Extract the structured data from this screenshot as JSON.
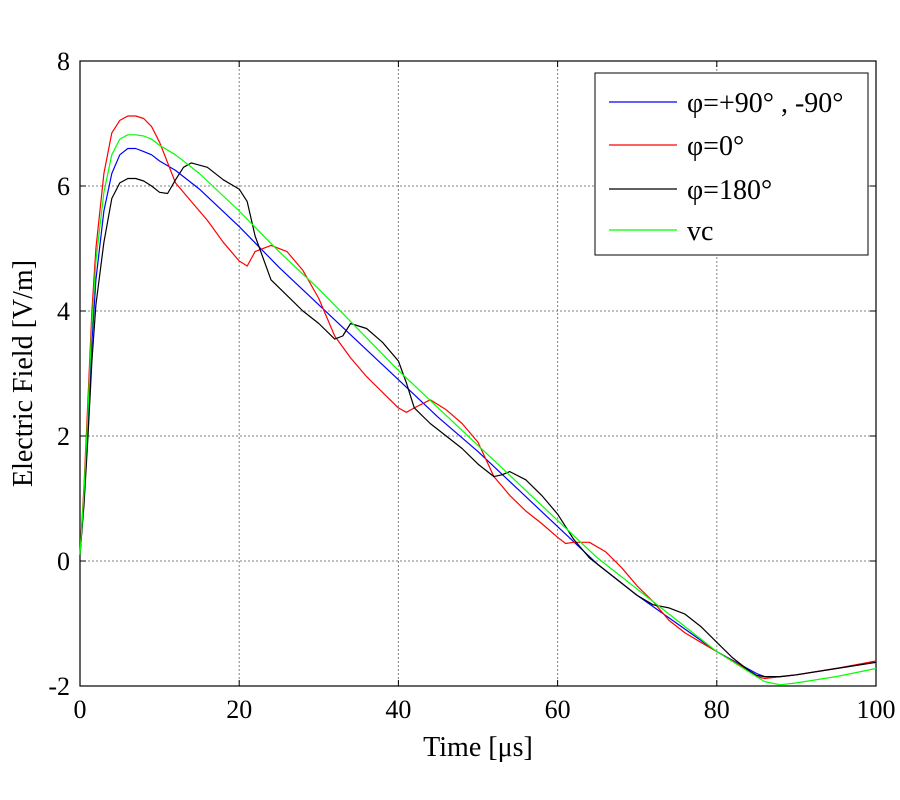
{
  "chart_data": {
    "type": "line",
    "title": "",
    "xlabel": "Time [μs]",
    "ylabel": "Electric Field [V/m]",
    "xlim": [
      0,
      100
    ],
    "ylim": [
      -2,
      8
    ],
    "xticks": [
      0,
      20,
      40,
      60,
      80,
      100
    ],
    "yticks": [
      -2,
      0,
      2,
      4,
      6,
      8
    ],
    "grid": true,
    "legend_position": "top-right",
    "series": [
      {
        "name": "φ=+90° , -90°",
        "color": "#0000ff",
        "x": [
          0,
          0.5,
          1,
          1.5,
          2,
          3,
          4,
          5,
          6,
          7,
          8,
          9,
          10,
          12,
          15,
          20,
          25,
          30,
          35,
          40,
          45,
          50,
          55,
          60,
          65,
          70,
          75,
          80,
          85,
          86,
          88,
          90,
          95,
          100
        ],
        "y": [
          0.1,
          1.0,
          2.2,
          3.5,
          4.5,
          5.6,
          6.2,
          6.5,
          6.6,
          6.6,
          6.55,
          6.5,
          6.4,
          6.25,
          5.95,
          5.35,
          4.7,
          4.1,
          3.5,
          2.9,
          2.3,
          1.75,
          1.15,
          0.55,
          -0.05,
          -0.55,
          -1.0,
          -1.45,
          -1.8,
          -1.85,
          -1.85,
          -1.82,
          -1.72,
          -1.62
        ]
      },
      {
        "name": "φ=0°",
        "color": "#ff0000",
        "x": [
          0,
          0.5,
          1,
          1.5,
          2,
          3,
          4,
          5,
          6,
          7,
          8,
          9,
          10,
          12,
          14,
          16,
          18,
          20,
          21,
          22,
          24,
          26,
          28,
          30,
          32,
          34,
          36,
          38,
          40,
          41,
          42,
          44,
          46,
          48,
          50,
          52,
          54,
          56,
          58,
          60,
          61,
          62,
          64,
          66,
          68,
          70,
          72,
          74,
          76,
          78,
          80,
          82,
          84,
          85,
          86,
          88,
          90,
          95,
          100
        ],
        "y": [
          0.1,
          1.2,
          2.6,
          4.0,
          5.0,
          6.2,
          6.85,
          7.05,
          7.12,
          7.12,
          7.08,
          6.95,
          6.7,
          6.05,
          5.75,
          5.45,
          5.1,
          4.8,
          4.72,
          4.95,
          5.05,
          4.95,
          4.65,
          4.2,
          3.6,
          3.25,
          2.95,
          2.7,
          2.45,
          2.38,
          2.45,
          2.58,
          2.42,
          2.2,
          1.9,
          1.35,
          1.05,
          0.8,
          0.6,
          0.38,
          0.28,
          0.3,
          0.3,
          0.15,
          -0.1,
          -0.4,
          -0.65,
          -0.95,
          -1.15,
          -1.3,
          -1.45,
          -1.6,
          -1.75,
          -1.85,
          -1.88,
          -1.85,
          -1.82,
          -1.72,
          -1.6
        ]
      },
      {
        "name": "φ=180°",
        "color": "#000000",
        "x": [
          0,
          0.5,
          1,
          1.5,
          2,
          3,
          4,
          5,
          6,
          7,
          8,
          9,
          10,
          11,
          12,
          13,
          14,
          16,
          18,
          20,
          21,
          22,
          24,
          26,
          28,
          30,
          32,
          33,
          34,
          36,
          38,
          40,
          41,
          42,
          44,
          46,
          48,
          50,
          52,
          53,
          54,
          56,
          58,
          60,
          62,
          64,
          66,
          68,
          70,
          72,
          74,
          76,
          78,
          80,
          82,
          84,
          85,
          86,
          88,
          90,
          95,
          100
        ],
        "y": [
          0.1,
          0.9,
          2.0,
          3.2,
          4.1,
          5.1,
          5.8,
          6.05,
          6.12,
          6.12,
          6.08,
          6.0,
          5.9,
          5.88,
          6.1,
          6.3,
          6.37,
          6.3,
          6.1,
          5.95,
          5.75,
          5.2,
          4.5,
          4.25,
          4.0,
          3.8,
          3.55,
          3.6,
          3.8,
          3.72,
          3.5,
          3.2,
          2.85,
          2.45,
          2.2,
          2.0,
          1.8,
          1.55,
          1.35,
          1.38,
          1.43,
          1.3,
          1.05,
          0.75,
          0.35,
          0.05,
          -0.15,
          -0.35,
          -0.55,
          -0.7,
          -0.75,
          -0.85,
          -1.05,
          -1.3,
          -1.55,
          -1.75,
          -1.83,
          -1.85,
          -1.85,
          -1.82,
          -1.72,
          -1.62
        ]
      },
      {
        "name": "vc",
        "color": "#00ff00",
        "x": [
          0,
          0.5,
          1,
          1.5,
          2,
          3,
          4,
          5,
          6,
          7,
          8,
          9,
          10,
          12,
          15,
          20,
          25,
          30,
          35,
          40,
          45,
          50,
          55,
          60,
          65,
          70,
          75,
          80,
          85,
          86,
          88,
          90,
          95,
          100
        ],
        "y": [
          0.1,
          1.1,
          2.4,
          3.8,
          4.8,
          5.9,
          6.5,
          6.75,
          6.82,
          6.82,
          6.8,
          6.75,
          6.65,
          6.5,
          6.2,
          5.6,
          4.95,
          4.35,
          3.7,
          3.05,
          2.45,
          1.85,
          1.25,
          0.65,
          0.05,
          -0.45,
          -0.95,
          -1.45,
          -1.85,
          -1.93,
          -1.98,
          -1.95,
          -1.85,
          -1.72
        ]
      }
    ]
  }
}
